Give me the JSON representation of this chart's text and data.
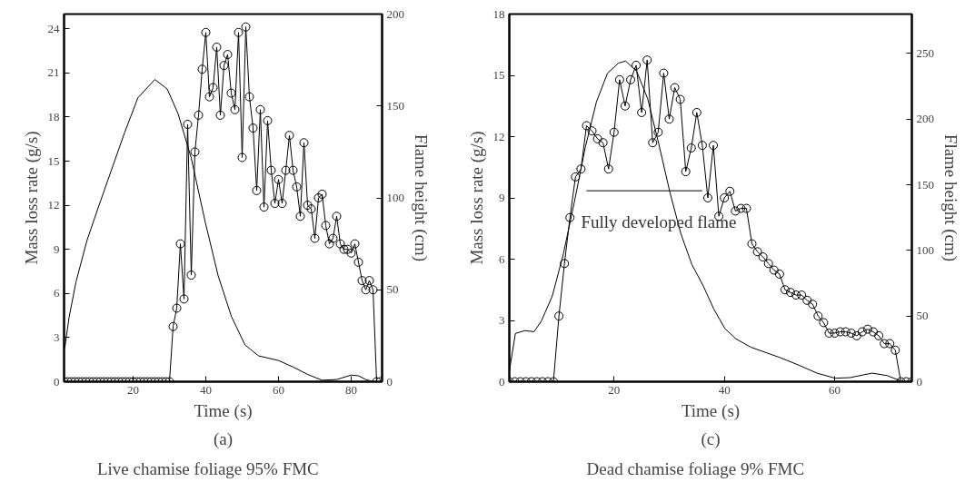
{
  "chart_data": [
    {
      "type": "line",
      "xlabel": "Time (s)",
      "ylabel": "Mass loss rate (g/s)",
      "y2label": "Flame height (cm)",
      "xlim": [
        1,
        88.5
      ],
      "xticks": [
        20,
        40,
        60,
        80
      ],
      "ylim": [
        0,
        25
      ],
      "yticks": [
        0,
        3,
        6,
        9,
        12,
        15,
        18,
        21,
        24
      ],
      "y2lim": [
        0,
        200
      ],
      "y2ticks": [
        0,
        50,
        100,
        150,
        200
      ],
      "annotations": [
        "(a)",
        "Live chamise foliage        95% FMC"
      ],
      "series": [
        {
          "color": "#000000",
          "marker": "none",
          "axis": "y",
          "x": [
            1.2,
            2.4,
            4.3,
            7.3,
            10.2,
            13.9,
            17.6,
            21.3,
            26,
            29.4,
            32.4,
            36,
            39.8,
            43.4,
            47.1,
            50.8,
            54.5,
            60,
            64,
            68,
            72,
            76,
            80,
            82,
            84,
            86
          ],
          "values": [
            2.3,
            4.4,
            6.8,
            9.6,
            11.7,
            14.3,
            16.9,
            19.3,
            20.55,
            19.9,
            18.2,
            15.2,
            10.9,
            7.2,
            4.4,
            2.5,
            1.76,
            1.44,
            1.0,
            0.5,
            0.1,
            0.15,
            0.45,
            0.4,
            0.15,
            0
          ]
        },
        {
          "color": "#000000",
          "marker": "circle",
          "axis": "y2",
          "x": [
            1,
            2,
            3,
            4,
            5,
            6,
            7,
            8,
            9,
            10,
            11,
            12,
            13,
            14,
            15,
            16,
            17,
            18,
            19,
            20,
            21,
            22,
            23,
            24,
            25,
            26,
            27,
            28,
            29,
            30,
            31,
            32,
            33,
            34,
            35,
            36,
            37,
            38,
            39,
            40,
            41,
            42,
            43,
            44,
            45,
            46,
            47,
            48,
            49,
            50,
            51,
            52,
            53,
            54,
            55,
            56,
            57,
            58,
            59,
            60,
            61,
            62,
            63,
            64,
            65,
            66,
            67,
            68,
            69,
            70,
            71,
            72,
            73,
            74,
            75,
            76,
            77,
            78,
            79,
            80,
            81,
            82,
            83,
            84,
            85,
            86,
            87,
            88
          ],
          "values": [
            0,
            0,
            0,
            0,
            0,
            0,
            0,
            0,
            0,
            0,
            0,
            0,
            0,
            0,
            0,
            0,
            0,
            0,
            0,
            0,
            0,
            0,
            0,
            0,
            0,
            0,
            0,
            0,
            0,
            0,
            30,
            40,
            75,
            45,
            140,
            58,
            125,
            145,
            170,
            190,
            155,
            160,
            182,
            145,
            172,
            178,
            157,
            148,
            190,
            122,
            193,
            155,
            138,
            104,
            148,
            95,
            142,
            115,
            97,
            110,
            97,
            115,
            134,
            115,
            106,
            90,
            130,
            96,
            94,
            78,
            100,
            102,
            85,
            75,
            78,
            90,
            75,
            72,
            72,
            70,
            75,
            65,
            55,
            50,
            55,
            50,
            0,
            0
          ]
        }
      ]
    },
    {
      "type": "line",
      "xlabel": "Time (s)",
      "ylabel": "Mass loss rate (g/s)",
      "y2label": "Flame height (cm)",
      "xlim": [
        1,
        74
      ],
      "xticks": [
        20,
        40,
        60
      ],
      "ylim": [
        0,
        18
      ],
      "yticks": [
        0,
        3,
        6,
        9,
        12,
        15,
        18
      ],
      "y2lim": [
        0,
        280
      ],
      "y2ticks": [
        0,
        50,
        100,
        150,
        200,
        250
      ],
      "annotations": [
        {
          "text": "Fully developed flame",
          "x": 15,
          "y": 9.35
        },
        "(c)",
        "Dead chamise foliage        9% FMC"
      ],
      "series": [
        {
          "color": "#000000",
          "marker": "none",
          "axis": "y",
          "x": [
            1,
            2.1,
            3.8,
            5.5,
            6.8,
            8.8,
            10.8,
            12.8,
            14.8,
            16.8,
            18.8,
            20.8,
            22.1,
            24.1,
            26.1,
            28.1,
            30.1,
            32.1,
            34.1,
            36.1,
            38.1,
            40.1,
            42.1,
            44.8,
            50.1,
            53.5,
            56.8,
            60.1,
            62.8,
            66.8,
            69.5,
            72.1
          ],
          "values": [
            0.5,
            2.36,
            2.5,
            2.45,
            2.96,
            4.2,
            6.25,
            8.8,
            11.5,
            13.7,
            15.1,
            15.6,
            15.7,
            15.2,
            13.85,
            11.65,
            9.3,
            7.26,
            5.74,
            4.73,
            3.55,
            2.6,
            2.1,
            1.69,
            1.18,
            0.81,
            0.42,
            0.17,
            0.2,
            0.42,
            0.3,
            0.03
          ]
        },
        {
          "color": "#000000",
          "marker": "circle",
          "axis": "y2",
          "x": [
            1,
            2,
            3,
            4,
            5,
            6,
            7,
            8,
            9,
            10,
            11,
            12,
            13,
            14,
            15,
            16,
            17,
            18,
            19,
            20,
            21,
            22,
            23,
            24,
            25,
            26,
            27,
            28,
            29,
            30,
            31,
            32,
            33,
            34,
            35,
            36,
            37,
            38,
            39,
            40,
            41,
            42,
            43,
            44,
            45,
            46,
            47,
            48,
            49,
            50,
            51,
            52,
            53,
            54,
            55,
            56,
            57,
            58,
            59,
            60,
            61,
            62,
            63,
            64,
            65,
            66,
            67,
            68,
            69,
            70,
            71,
            72,
            73,
            74
          ],
          "values": [
            0,
            0,
            0,
            0,
            0,
            0,
            0,
            0,
            0,
            50,
            90,
            125,
            156,
            162,
            195,
            191,
            185,
            182,
            162,
            190,
            230,
            210,
            230,
            241,
            205,
            245,
            182,
            190,
            235,
            200,
            224,
            215,
            160,
            178,
            205,
            180,
            140,
            180,
            126,
            140,
            145,
            130,
            132,
            132,
            105,
            99,
            95,
            90,
            85,
            82,
            70,
            68,
            66,
            66,
            62,
            59,
            50,
            45,
            37,
            37,
            38,
            38,
            37,
            35,
            38,
            40,
            38,
            35,
            29,
            29,
            24,
            0,
            0,
            0
          ]
        },
        {
          "color": "#000000",
          "marker": "none",
          "axis": "y",
          "x": [
            15,
            36
          ],
          "values": [
            9.35,
            9.35
          ]
        }
      ]
    }
  ]
}
